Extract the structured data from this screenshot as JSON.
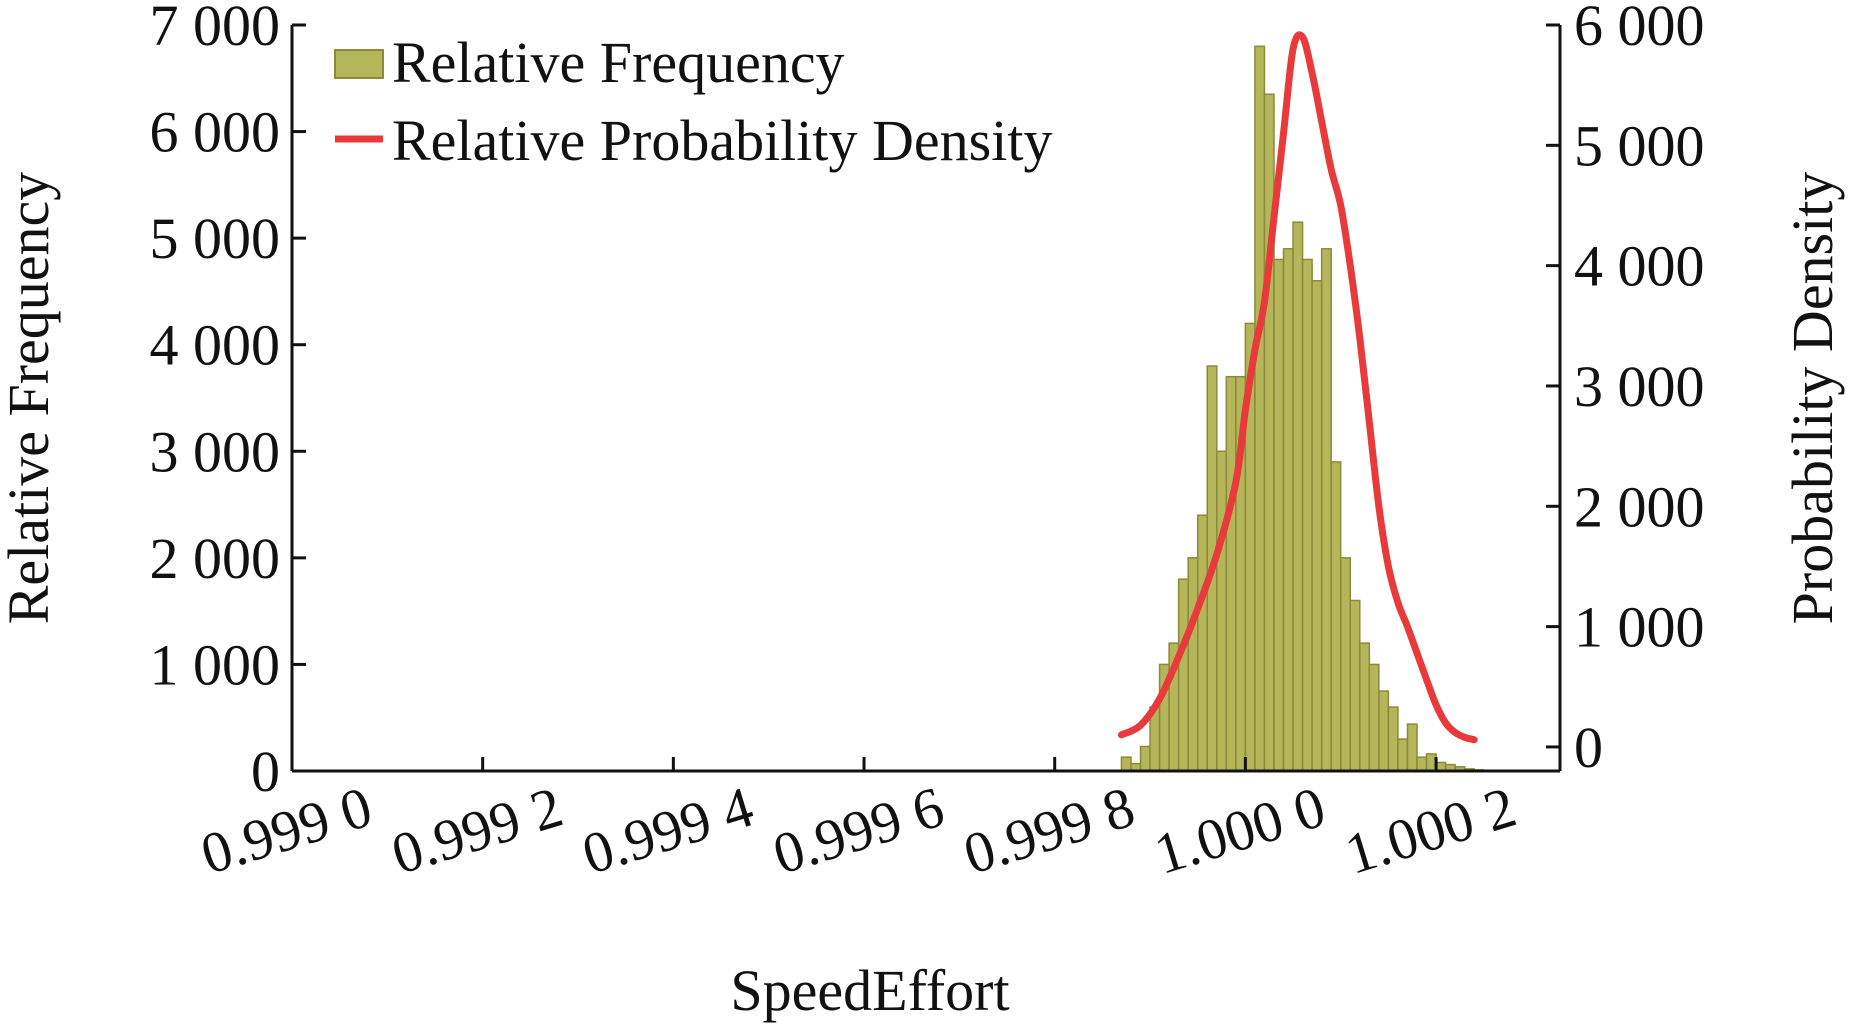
{
  "chart_data": {
    "type": "bar",
    "title": "",
    "xlabel": "SpeedEffort",
    "ylabel_left": "Relative Frequency",
    "ylabel_right": "Probability Density",
    "xlim": [
      0.999,
      1.00033
    ],
    "ylim_left": [
      0,
      7000
    ],
    "ylim_right": [
      -200,
      6000
    ],
    "grid": false,
    "legend_position": "top-left",
    "x_ticks": [
      {
        "value": 0.999,
        "label": "0.999 0"
      },
      {
        "value": 0.9992,
        "label": "0.999 2"
      },
      {
        "value": 0.9994,
        "label": "0.999 4"
      },
      {
        "value": 0.9996,
        "label": "0.999 6"
      },
      {
        "value": 0.9998,
        "label": "0.999 8"
      },
      {
        "value": 1.0,
        "label": "1.000 0"
      },
      {
        "value": 1.0002,
        "label": "1.000 2"
      }
    ],
    "y_ticks_left": [
      {
        "value": 0,
        "label": "0"
      },
      {
        "value": 1000,
        "label": "1 000"
      },
      {
        "value": 2000,
        "label": "2 000"
      },
      {
        "value": 3000,
        "label": "3 000"
      },
      {
        "value": 4000,
        "label": "4 000"
      },
      {
        "value": 5000,
        "label": "5 000"
      },
      {
        "value": 6000,
        "label": "6 000"
      },
      {
        "value": 7000,
        "label": "7 000"
      }
    ],
    "y_ticks_right": [
      {
        "value": 0,
        "label": "0"
      },
      {
        "value": 1000,
        "label": "1 000"
      },
      {
        "value": 2000,
        "label": "2 000"
      },
      {
        "value": 3000,
        "label": "3 000"
      },
      {
        "value": 4000,
        "label": "4 000"
      },
      {
        "value": 5000,
        "label": "5 000"
      },
      {
        "value": 6000,
        "label": "6 000"
      }
    ],
    "series": [
      {
        "name": "Relative Frequency",
        "kind": "histogram",
        "axis": "left",
        "color": "#b5b55a",
        "edge_color": "#8a8a3a",
        "bin_width": 1e-05,
        "bin_starts": [
          0.99987,
          0.99988,
          0.99989,
          0.9999,
          0.99991,
          0.99992,
          0.99993,
          0.99994,
          0.99995,
          0.99996,
          0.99997,
          0.99998,
          0.99999,
          1.0,
          1.00001,
          1.00002,
          1.00003,
          1.00004,
          1.00005,
          1.00006,
          1.00007,
          1.00008,
          1.00009,
          1.0001,
          1.00011,
          1.00012,
          1.00013,
          1.00014,
          1.00015,
          1.00016,
          1.00017,
          1.00018,
          1.00019,
          1.0002,
          1.00021,
          1.00022,
          1.00023,
          1.00024,
          1.00025,
          1.00026,
          1.00027,
          1.00028,
          1.00029,
          1.0003,
          1.00031
        ],
        "values": [
          130,
          70,
          230,
          600,
          1000,
          1200,
          1800,
          2000,
          2400,
          3800,
          3000,
          3700,
          3700,
          4200,
          6800,
          6350,
          4800,
          4900,
          5150,
          4800,
          4600,
          4900,
          2900,
          2000,
          1600,
          1200,
          1000,
          750,
          600,
          300,
          440,
          130,
          160,
          80,
          60,
          40,
          20,
          10,
          5,
          3,
          2,
          1,
          1,
          0,
          0
        ]
      },
      {
        "name": "Relative Probability Density",
        "kind": "line",
        "axis": "right",
        "color": "#e83a3a",
        "x": [
          0.99987,
          0.99989,
          0.99991,
          0.99993,
          0.99995,
          0.99997,
          0.99999,
          1.0,
          1.00001,
          1.00002,
          1.00003,
          1.00004,
          1.00005,
          1.00006,
          1.00007,
          1.00008,
          1.00009,
          1.0001,
          1.00011,
          1.00012,
          1.00013,
          1.00014,
          1.00015,
          1.00016,
          1.00017,
          1.00018,
          1.00019,
          1.0002,
          1.00021,
          1.00022,
          1.00023,
          1.00024
        ],
        "y": [
          100,
          180,
          400,
          750,
          1150,
          1600,
          2200,
          2800,
          3300,
          3700,
          4400,
          5100,
          5800,
          5900,
          5600,
          5200,
          4800,
          4500,
          4000,
          3400,
          2700,
          2000,
          1500,
          1200,
          1000,
          780,
          560,
          350,
          200,
          120,
          80,
          60
        ]
      }
    ]
  }
}
